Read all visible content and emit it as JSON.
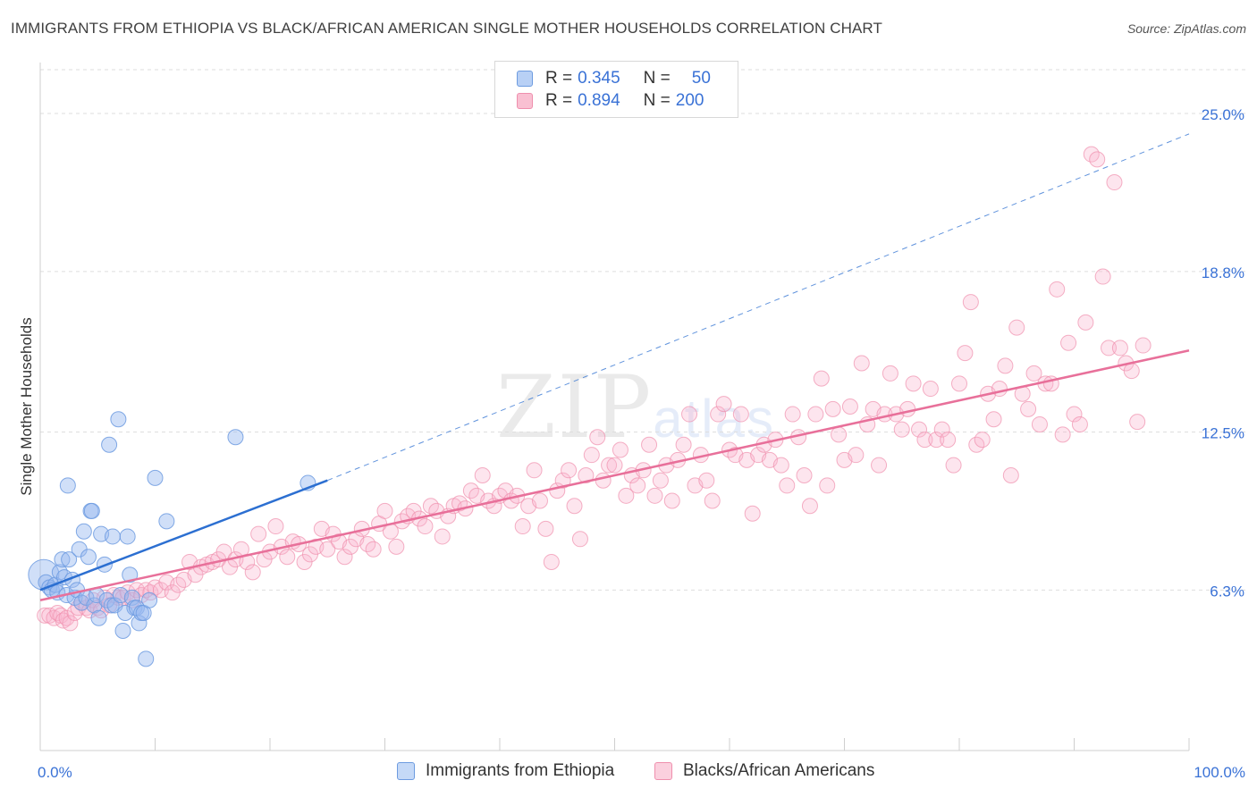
{
  "title": "IMMIGRANTS FROM ETHIOPIA VS BLACK/AFRICAN AMERICAN SINGLE MOTHER HOUSEHOLDS CORRELATION CHART",
  "source": "Source: ZipAtlas.com",
  "watermark": {
    "zip": "ZIP",
    "atlas": "atlas"
  },
  "legend": {
    "rows": [
      {
        "r_label": "R =",
        "r_value": "0.345",
        "n_label": "N =",
        "n_value": "50",
        "fill": "#b8d0f5",
        "stroke": "#6d9be0"
      },
      {
        "r_label": "R =",
        "r_value": "0.894",
        "n_label": "N =",
        "n_value": "200",
        "fill": "#f9c0d2",
        "stroke": "#ef8fad"
      }
    ]
  },
  "colors": {
    "blue_fill": "rgba(150,185,240,0.45)",
    "blue_stroke": "#6d9be0",
    "blue_line": "#2c6fd1",
    "pink_fill": "rgba(248,180,205,0.35)",
    "pink_stroke": "#ef8fad",
    "pink_line": "#e8709a",
    "tick_label": "#3a72d6",
    "grid": "#dedede"
  },
  "chart_data": {
    "type": "scatter",
    "title": "IMMIGRANTS FROM ETHIOPIA VS BLACK/AFRICAN AMERICAN SINGLE MOTHER HOUSEHOLDS CORRELATION CHART",
    "xlabel": "",
    "ylabel": "Single Mother Households",
    "xlim": [
      0,
      100
    ],
    "ylim": [
      0,
      27
    ],
    "x_tick_labels": [
      "0.0%",
      "100.0%"
    ],
    "y_ticks": [
      6.3,
      12.5,
      18.8,
      25.0
    ],
    "y_tick_labels": [
      "6.3%",
      "12.5%",
      "18.8%",
      "25.0%"
    ],
    "grid": true,
    "legend_placement": "bottom",
    "series": [
      {
        "name": "Immigrants from Ethiopia",
        "trend": {
          "x0": 0,
          "y0": 6.3,
          "x1": 25,
          "y1": 10.6,
          "dashed_to_x": 100,
          "dashed_to_y": 24.2
        },
        "points": [
          [
            0.3,
            6.9
          ],
          [
            0.5,
            6.6
          ],
          [
            0.8,
            6.4
          ],
          [
            1.0,
            6.3
          ],
          [
            1.3,
            6.5
          ],
          [
            1.5,
            6.2
          ],
          [
            1.7,
            7.0
          ],
          [
            1.9,
            7.5
          ],
          [
            2.1,
            6.8
          ],
          [
            2.3,
            6.1
          ],
          [
            2.4,
            10.4
          ],
          [
            2.5,
            7.5
          ],
          [
            2.8,
            6.7
          ],
          [
            3.0,
            6.0
          ],
          [
            3.2,
            6.3
          ],
          [
            3.4,
            7.9
          ],
          [
            3.6,
            5.8
          ],
          [
            3.8,
            8.6
          ],
          [
            4.0,
            6.0
          ],
          [
            4.2,
            7.6
          ],
          [
            4.4,
            9.4
          ],
          [
            4.5,
            9.4
          ],
          [
            4.7,
            5.7
          ],
          [
            4.9,
            6.1
          ],
          [
            5.1,
            5.2
          ],
          [
            5.3,
            8.5
          ],
          [
            5.6,
            7.3
          ],
          [
            5.8,
            5.9
          ],
          [
            6.0,
            12.0
          ],
          [
            6.2,
            5.7
          ],
          [
            6.3,
            8.4
          ],
          [
            6.5,
            5.7
          ],
          [
            6.8,
            13.0
          ],
          [
            7.0,
            6.1
          ],
          [
            7.2,
            4.7
          ],
          [
            7.4,
            5.4
          ],
          [
            7.6,
            8.4
          ],
          [
            7.8,
            6.9
          ],
          [
            8.0,
            6.0
          ],
          [
            8.2,
            5.6
          ],
          [
            8.4,
            5.6
          ],
          [
            8.6,
            5.0
          ],
          [
            8.8,
            5.4
          ],
          [
            9.0,
            5.4
          ],
          [
            9.2,
            3.6
          ],
          [
            9.5,
            5.9
          ],
          [
            10.0,
            10.7
          ],
          [
            11.0,
            9.0
          ],
          [
            17.0,
            12.3
          ],
          [
            23.3,
            10.5
          ]
        ]
      },
      {
        "name": "Blacks/African Americans",
        "trend": {
          "x0": 0,
          "y0": 5.9,
          "x1": 100,
          "y1": 15.7
        },
        "points": [
          [
            0.4,
            5.3
          ],
          [
            0.8,
            5.3
          ],
          [
            1.2,
            5.2
          ],
          [
            1.5,
            5.4
          ],
          [
            1.8,
            5.3
          ],
          [
            2.0,
            5.1
          ],
          [
            2.3,
            5.2
          ],
          [
            2.6,
            5.0
          ],
          [
            3.0,
            5.4
          ],
          [
            3.3,
            5.6
          ],
          [
            3.6,
            5.8
          ],
          [
            4.0,
            5.6
          ],
          [
            4.3,
            5.5
          ],
          [
            4.6,
            5.9
          ],
          [
            5.0,
            5.6
          ],
          [
            5.3,
            5.5
          ],
          [
            5.6,
            6.0
          ],
          [
            6.0,
            5.7
          ],
          [
            6.4,
            6.1
          ],
          [
            6.8,
            6.0
          ],
          [
            7.2,
            6.0
          ],
          [
            7.6,
            6.2
          ],
          [
            8.0,
            5.9
          ],
          [
            8.4,
            6.3
          ],
          [
            8.8,
            6.1
          ],
          [
            9.2,
            6.3
          ],
          [
            9.6,
            6.2
          ],
          [
            10.0,
            6.4
          ],
          [
            10.5,
            6.3
          ],
          [
            11.0,
            6.6
          ],
          [
            11.5,
            6.2
          ],
          [
            12.0,
            6.5
          ],
          [
            12.5,
            6.7
          ],
          [
            13.0,
            7.4
          ],
          [
            13.5,
            6.9
          ],
          [
            14.0,
            7.2
          ],
          [
            14.5,
            7.3
          ],
          [
            15.0,
            7.4
          ],
          [
            15.5,
            7.5
          ],
          [
            16.0,
            7.8
          ],
          [
            16.5,
            7.2
          ],
          [
            17.0,
            7.5
          ],
          [
            17.5,
            7.9
          ],
          [
            18.0,
            7.4
          ],
          [
            18.5,
            7.0
          ],
          [
            19.0,
            8.5
          ],
          [
            19.5,
            7.5
          ],
          [
            20.0,
            7.8
          ],
          [
            20.5,
            8.8
          ],
          [
            21.0,
            8.0
          ],
          [
            21.5,
            7.6
          ],
          [
            22.0,
            8.2
          ],
          [
            22.5,
            8.1
          ],
          [
            23.0,
            7.4
          ],
          [
            23.5,
            7.7
          ],
          [
            24.0,
            8.0
          ],
          [
            24.5,
            8.7
          ],
          [
            25.0,
            7.9
          ],
          [
            25.5,
            8.5
          ],
          [
            26.0,
            8.2
          ],
          [
            26.5,
            7.6
          ],
          [
            27.0,
            8.0
          ],
          [
            27.5,
            8.3
          ],
          [
            28.0,
            8.7
          ],
          [
            28.5,
            8.1
          ],
          [
            29.0,
            7.9
          ],
          [
            29.5,
            8.9
          ],
          [
            30.0,
            9.4
          ],
          [
            30.5,
            8.6
          ],
          [
            31.0,
            8.0
          ],
          [
            31.5,
            9.0
          ],
          [
            32.0,
            9.2
          ],
          [
            32.5,
            9.4
          ],
          [
            33.0,
            9.1
          ],
          [
            33.5,
            8.8
          ],
          [
            34.0,
            9.6
          ],
          [
            34.5,
            9.4
          ],
          [
            35.0,
            8.4
          ],
          [
            35.5,
            9.2
          ],
          [
            36.0,
            9.6
          ],
          [
            36.5,
            9.7
          ],
          [
            37.0,
            9.5
          ],
          [
            37.5,
            10.2
          ],
          [
            38.0,
            10.0
          ],
          [
            38.5,
            10.8
          ],
          [
            39.0,
            9.8
          ],
          [
            39.5,
            9.6
          ],
          [
            40.0,
            10.0
          ],
          [
            40.5,
            10.2
          ],
          [
            41.0,
            9.8
          ],
          [
            41.5,
            10.0
          ],
          [
            42.0,
            8.8
          ],
          [
            42.5,
            9.6
          ],
          [
            43.0,
            11.0
          ],
          [
            43.5,
            9.8
          ],
          [
            44.0,
            8.7
          ],
          [
            44.5,
            7.4
          ],
          [
            45.0,
            10.2
          ],
          [
            45.5,
            10.6
          ],
          [
            46.0,
            11.0
          ],
          [
            46.5,
            9.6
          ],
          [
            47.0,
            8.3
          ],
          [
            47.5,
            10.8
          ],
          [
            48.0,
            11.6
          ],
          [
            48.5,
            12.3
          ],
          [
            49.0,
            10.6
          ],
          [
            49.5,
            11.2
          ],
          [
            50.0,
            11.2
          ],
          [
            50.5,
            11.8
          ],
          [
            51.0,
            10.0
          ],
          [
            51.5,
            10.8
          ],
          [
            52.0,
            10.4
          ],
          [
            52.5,
            11.0
          ],
          [
            53.0,
            12.0
          ],
          [
            53.5,
            10.0
          ],
          [
            54.0,
            10.6
          ],
          [
            54.5,
            11.2
          ],
          [
            55.0,
            9.8
          ],
          [
            55.5,
            11.4
          ],
          [
            56.0,
            12.0
          ],
          [
            56.5,
            13.2
          ],
          [
            57.0,
            10.4
          ],
          [
            57.5,
            11.6
          ],
          [
            58.0,
            10.6
          ],
          [
            58.5,
            9.8
          ],
          [
            59.0,
            13.2
          ],
          [
            59.5,
            13.6
          ],
          [
            60.0,
            11.8
          ],
          [
            60.5,
            11.6
          ],
          [
            61.0,
            13.2
          ],
          [
            61.5,
            11.4
          ],
          [
            62.0,
            9.3
          ],
          [
            62.5,
            11.6
          ],
          [
            63.0,
            12.0
          ],
          [
            63.5,
            11.4
          ],
          [
            64.0,
            12.2
          ],
          [
            64.5,
            11.2
          ],
          [
            65.0,
            10.4
          ],
          [
            65.5,
            13.2
          ],
          [
            66.0,
            12.3
          ],
          [
            66.5,
            10.8
          ],
          [
            67.0,
            9.6
          ],
          [
            67.5,
            13.2
          ],
          [
            68.0,
            14.6
          ],
          [
            68.5,
            10.4
          ],
          [
            69.0,
            13.4
          ],
          [
            69.5,
            12.4
          ],
          [
            70.0,
            11.4
          ],
          [
            70.5,
            13.5
          ],
          [
            71.0,
            11.6
          ],
          [
            71.5,
            15.2
          ],
          [
            72.0,
            12.8
          ],
          [
            72.5,
            13.4
          ],
          [
            73.0,
            11.2
          ],
          [
            73.5,
            13.2
          ],
          [
            74.0,
            14.8
          ],
          [
            74.5,
            13.2
          ],
          [
            75.0,
            12.6
          ],
          [
            75.5,
            13.4
          ],
          [
            76.0,
            14.4
          ],
          [
            76.5,
            12.6
          ],
          [
            77.0,
            12.2
          ],
          [
            77.5,
            14.2
          ],
          [
            78.0,
            12.2
          ],
          [
            78.5,
            12.6
          ],
          [
            79.0,
            12.2
          ],
          [
            79.5,
            11.2
          ],
          [
            80.0,
            14.4
          ],
          [
            80.5,
            15.6
          ],
          [
            81.0,
            17.6
          ],
          [
            81.5,
            12.0
          ],
          [
            82.0,
            12.2
          ],
          [
            82.5,
            14.0
          ],
          [
            83.0,
            13.0
          ],
          [
            83.5,
            14.2
          ],
          [
            84.0,
            15.1
          ],
          [
            84.5,
            10.8
          ],
          [
            85.0,
            16.6
          ],
          [
            85.5,
            14.0
          ],
          [
            86.0,
            13.4
          ],
          [
            86.5,
            14.8
          ],
          [
            87.0,
            12.8
          ],
          [
            87.5,
            14.4
          ],
          [
            88.0,
            14.4
          ],
          [
            88.5,
            18.1
          ],
          [
            89.0,
            12.4
          ],
          [
            89.5,
            16.0
          ],
          [
            90.0,
            13.2
          ],
          [
            90.5,
            12.8
          ],
          [
            91.0,
            16.8
          ],
          [
            91.5,
            23.4
          ],
          [
            92.0,
            23.2
          ],
          [
            92.5,
            18.6
          ],
          [
            93.0,
            15.8
          ],
          [
            93.5,
            22.3
          ],
          [
            94.0,
            15.8
          ],
          [
            94.5,
            15.2
          ],
          [
            95.0,
            14.9
          ],
          [
            95.5,
            12.9
          ],
          [
            96.0,
            15.9
          ]
        ]
      }
    ]
  },
  "bottom_legend": [
    {
      "label": "Immigrants from Ethiopia"
    },
    {
      "label": "Blacks/African Americans"
    }
  ]
}
